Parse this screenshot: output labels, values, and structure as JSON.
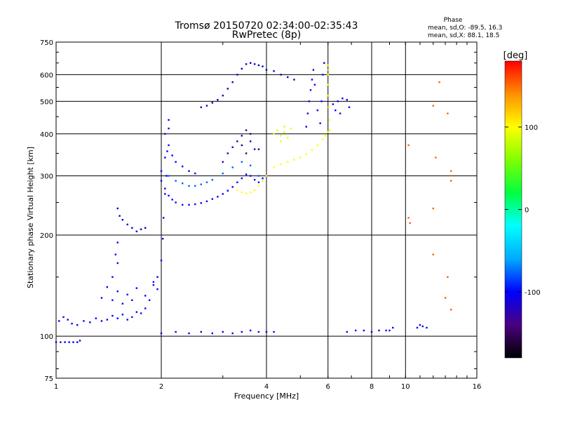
{
  "chart_data": {
    "type": "scatter",
    "title": "Tromsø 20150720 02:34:00-02:35:43",
    "subtitle": "RwPretec (8p)",
    "xlabel": "Frequency [MHz]",
    "ylabel": "Stationary phase Virtual Height [km]",
    "x_scale": "log",
    "y_scale": "log",
    "xlim": [
      1,
      16
    ],
    "ylim": [
      75,
      750
    ],
    "x_ticks": [
      1,
      2,
      4,
      6,
      8,
      10,
      16
    ],
    "x_tick_labels": [
      "1",
      "2",
      "4",
      "6",
      "8",
      "10",
      "16"
    ],
    "x_grid": [
      2,
      4,
      6,
      8,
      10
    ],
    "y_ticks": [
      75,
      100,
      200,
      300,
      400,
      500,
      600,
      750
    ],
    "y_tick_labels": [
      "75",
      "100",
      "200",
      "300",
      "400",
      "500",
      "600",
      "750"
    ],
    "y_grid": [
      100,
      200,
      300,
      400,
      500,
      600
    ],
    "grid": true,
    "stats": {
      "heading": "Phase",
      "line1": "mean, sd,O: -89.5, 16.3",
      "line2": "mean, sd,X:  88.1, 18.5"
    },
    "colorbar": {
      "unit": "[deg]",
      "range": [
        -180,
        180
      ],
      "ticks": [
        100,
        0,
        -100
      ],
      "tick_labels": [
        "100",
        "0",
        "-100"
      ],
      "colors": [
        "#000000",
        "#4a0080",
        "#0000ff",
        "#00aaff",
        "#00ffff",
        "#00ff40",
        "#80ff00",
        "#ffff00",
        "#ff9000",
        "#ff0000"
      ]
    },
    "series": [
      {
        "values": [
          [
            1.0,
            96
          ],
          [
            1.03,
            96
          ],
          [
            1.06,
            96
          ],
          [
            1.09,
            96
          ],
          [
            1.12,
            96
          ],
          [
            1.15,
            96
          ],
          [
            1.17,
            97
          ]
        ]
      },
      {
        "values": [
          [
            1.02,
            111
          ],
          [
            1.05,
            114
          ],
          [
            1.08,
            112
          ],
          [
            1.11,
            109
          ],
          [
            1.15,
            108
          ],
          [
            1.2,
            111
          ],
          [
            1.25,
            110
          ],
          [
            1.3,
            113
          ],
          [
            1.35,
            111
          ],
          [
            1.4,
            112
          ],
          [
            1.45,
            115
          ],
          [
            1.5,
            113
          ],
          [
            1.55,
            116
          ],
          [
            1.6,
            112
          ],
          [
            1.65,
            114
          ],
          [
            1.7,
            118
          ],
          [
            1.75,
            117
          ],
          [
            1.8,
            121
          ],
          [
            1.85,
            128
          ],
          [
            1.9,
            142
          ],
          [
            1.95,
            150
          ],
          [
            2.0,
            168
          ],
          [
            2.02,
            195
          ],
          [
            2.03,
            225
          ],
          [
            2.05,
            265
          ],
          [
            2.07,
            300
          ],
          [
            2.08,
            355
          ],
          [
            2.1,
            415
          ]
        ]
      },
      {
        "values": [
          [
            1.35,
            130
          ],
          [
            1.4,
            140
          ],
          [
            1.45,
            128
          ],
          [
            1.5,
            136
          ],
          [
            1.55,
            125
          ],
          [
            1.6,
            133
          ],
          [
            1.65,
            128
          ],
          [
            1.7,
            139
          ],
          [
            1.8,
            132
          ],
          [
            1.9,
            145
          ],
          [
            1.95,
            138
          ],
          [
            1.45,
            150
          ],
          [
            1.5,
            165
          ],
          [
            1.5,
            190
          ],
          [
            1.48,
            175
          ]
        ]
      },
      {
        "values": [
          [
            1.5,
            240
          ],
          [
            1.52,
            228
          ],
          [
            1.55,
            222
          ],
          [
            1.6,
            215
          ],
          [
            1.65,
            210
          ],
          [
            1.7,
            205
          ],
          [
            1.75,
            208
          ],
          [
            1.8,
            210
          ]
        ]
      },
      {
        "values": [
          [
            2.0,
            102
          ],
          [
            2.2,
            103
          ],
          [
            2.4,
            102
          ],
          [
            2.6,
            103
          ],
          [
            2.8,
            102
          ],
          [
            3.0,
            103
          ],
          [
            3.2,
            102
          ],
          [
            3.4,
            103
          ],
          [
            3.6,
            104
          ],
          [
            3.8,
            103
          ],
          [
            4.0,
            103
          ],
          [
            4.2,
            103
          ]
        ]
      },
      {
        "values": [
          [
            2.0,
            290
          ],
          [
            2.05,
            275
          ],
          [
            2.1,
            262
          ],
          [
            2.15,
            255
          ],
          [
            2.2,
            250
          ],
          [
            2.3,
            246
          ],
          [
            2.4,
            246
          ],
          [
            2.5,
            247
          ],
          [
            2.6,
            249
          ],
          [
            2.7,
            252
          ],
          [
            2.8,
            256
          ],
          [
            2.9,
            260
          ],
          [
            3.0,
            265
          ],
          [
            3.1,
            271
          ],
          [
            3.2,
            278
          ],
          [
            3.3,
            287
          ],
          [
            3.4,
            295
          ],
          [
            3.5,
            303
          ],
          [
            3.6,
            300
          ],
          [
            3.7,
            292
          ],
          [
            3.8,
            287
          ],
          [
            3.9,
            295
          ],
          [
            4.0,
            300
          ]
        ]
      },
      {
        "values": [
          [
            2.1,
            300
          ],
          [
            2.2,
            290
          ],
          [
            2.3,
            285
          ],
          [
            2.4,
            280
          ],
          [
            2.5,
            280
          ],
          [
            2.6,
            283
          ],
          [
            2.7,
            287
          ],
          [
            2.8,
            292
          ],
          [
            3.0,
            305
          ],
          [
            3.2,
            318
          ],
          [
            3.4,
            330
          ],
          [
            3.6,
            322
          ],
          [
            3.8,
            300
          ]
        ]
      },
      {
        "values": [
          [
            3.3,
            272
          ],
          [
            3.4,
            268
          ],
          [
            3.5,
            266
          ],
          [
            3.6,
            268
          ],
          [
            3.7,
            272
          ],
          [
            3.8,
            280
          ],
          [
            3.9,
            290
          ],
          [
            4.0,
            300
          ],
          [
            4.2,
            318
          ],
          [
            4.4,
            325
          ],
          [
            4.6,
            330
          ],
          [
            4.8,
            335
          ],
          [
            5.0,
            340
          ],
          [
            5.2,
            348
          ],
          [
            5.4,
            358
          ],
          [
            5.6,
            370
          ],
          [
            5.8,
            385
          ],
          [
            5.9,
            395
          ],
          [
            6.0,
            405
          ]
        ]
      },
      {
        "values": [
          [
            6.0,
            600
          ],
          [
            6.01,
            560
          ],
          [
            6.02,
            520
          ],
          [
            6.03,
            480
          ],
          [
            6.05,
            440
          ],
          [
            6.07,
            410
          ],
          [
            6.03,
            620
          ],
          [
            6.0,
            640
          ]
        ]
      },
      {
        "values": [
          [
            4.2,
            400
          ],
          [
            4.3,
            410
          ],
          [
            4.4,
            395
          ],
          [
            4.5,
            405
          ],
          [
            4.6,
            390
          ],
          [
            4.7,
            415
          ],
          [
            4.4,
            380
          ],
          [
            4.5,
            420
          ]
        ]
      },
      {
        "values": [
          [
            2.6,
            480
          ],
          [
            2.7,
            485
          ],
          [
            2.8,
            495
          ],
          [
            2.9,
            505
          ],
          [
            3.0,
            520
          ],
          [
            3.1,
            545
          ],
          [
            3.2,
            570
          ],
          [
            3.3,
            600
          ],
          [
            3.4,
            625
          ],
          [
            3.5,
            645
          ],
          [
            3.6,
            650
          ],
          [
            3.7,
            645
          ],
          [
            3.8,
            640
          ],
          [
            3.9,
            635
          ],
          [
            4.0,
            620
          ],
          [
            4.2,
            615
          ],
          [
            4.4,
            600
          ],
          [
            4.6,
            590
          ],
          [
            4.8,
            580
          ]
        ]
      },
      {
        "values": [
          [
            3.0,
            330
          ],
          [
            3.1,
            350
          ],
          [
            3.2,
            365
          ],
          [
            3.3,
            380
          ],
          [
            3.4,
            395
          ],
          [
            3.5,
            410
          ],
          [
            3.6,
            380
          ],
          [
            3.7,
            360
          ],
          [
            3.5,
            350
          ],
          [
            3.4,
            370
          ],
          [
            3.6,
            400
          ],
          [
            3.8,
            360
          ]
        ]
      },
      {
        "values": [
          [
            5.2,
            420
          ],
          [
            5.25,
            460
          ],
          [
            5.3,
            500
          ],
          [
            5.35,
            540
          ],
          [
            5.4,
            580
          ],
          [
            5.45,
            620
          ],
          [
            5.5,
            560
          ],
          [
            5.6,
            470
          ],
          [
            5.7,
            430
          ],
          [
            5.8,
            600
          ],
          [
            5.85,
            650
          ],
          [
            5.75,
            500
          ]
        ]
      },
      {
        "values": [
          [
            6.2,
            490
          ],
          [
            6.4,
            500
          ],
          [
            6.6,
            510
          ],
          [
            6.8,
            505
          ],
          [
            6.9,
            480
          ],
          [
            6.3,
            470
          ],
          [
            6.5,
            460
          ]
        ]
      },
      {
        "values": [
          [
            2.05,
            400
          ],
          [
            2.1,
            370
          ],
          [
            2.15,
            345
          ],
          [
            2.2,
            330
          ],
          [
            2.3,
            320
          ],
          [
            2.4,
            310
          ],
          [
            2.5,
            305
          ],
          [
            2.1,
            440
          ],
          [
            2.05,
            340
          ],
          [
            2.0,
            310
          ]
        ]
      },
      {
        "values": [
          [
            6.8,
            103
          ],
          [
            7.2,
            104
          ],
          [
            7.6,
            104
          ],
          [
            8.0,
            103
          ],
          [
            8.4,
            104
          ],
          [
            8.8,
            104
          ],
          [
            9.0,
            104
          ],
          [
            9.2,
            106
          ],
          [
            10.8,
            106
          ],
          [
            11.0,
            108
          ],
          [
            11.2,
            107
          ],
          [
            11.5,
            106
          ]
        ]
      },
      {
        "values": [
          [
            10.2,
            225
          ],
          [
            10.3,
            217
          ],
          [
            12.0,
            175
          ],
          [
            12.0,
            240
          ],
          [
            12.2,
            340
          ],
          [
            13.5,
            290
          ],
          [
            13.5,
            310
          ],
          [
            12.0,
            485
          ],
          [
            10.2,
            370
          ],
          [
            13.2,
            460
          ],
          [
            13.0,
            130
          ],
          [
            13.2,
            150
          ],
          [
            13.5,
            120
          ],
          [
            12.5,
            570
          ]
        ]
      }
    ],
    "series_colors": [
      "#0000e0",
      "#0000ff",
      "#0000ff",
      "#0000cc",
      "#0000ff",
      "#0000ff",
      "#0060ff",
      "#ffff00",
      "#ffff00",
      "#e0ff00",
      "#0000cc",
      "#2000a0",
      "#0000ff",
      "#0000ff",
      "#0000ff",
      "#0000ff",
      "#ff6000"
    ]
  }
}
